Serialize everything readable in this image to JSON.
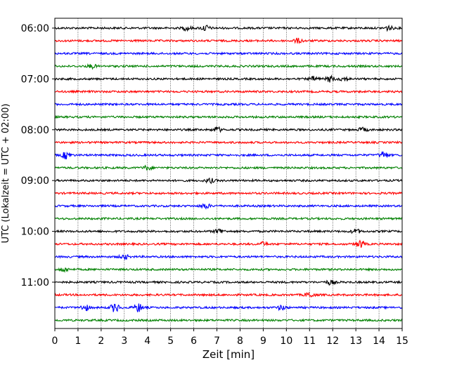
{
  "chart_data": {
    "type": "line",
    "title": "",
    "xlabel": "Zeit  [min]",
    "ylabel": "UTC (Lokalzeit = UTC + 02:00)",
    "xlim": [
      0,
      15
    ],
    "xticks": [
      0,
      1,
      2,
      3,
      4,
      5,
      6,
      7,
      8,
      9,
      10,
      11,
      12,
      13,
      14,
      15
    ],
    "grid_x": true,
    "grid_style": "dotted",
    "line_interval_minutes": 15,
    "start_time": "06:00",
    "y_tick_labels": [
      "06:00",
      "07:00",
      "08:00",
      "09:00",
      "10:00",
      "11:00"
    ],
    "y_tick_rows": [
      0,
      4,
      8,
      12,
      16,
      20
    ],
    "row_count": 24,
    "color_cycle": [
      "#000000",
      "#ff0000",
      "#0000ff",
      "#008000"
    ],
    "bursts": [
      {
        "row": 0,
        "x": 5.7,
        "amp": 3
      },
      {
        "row": 0,
        "x": 6.5,
        "amp": 4
      },
      {
        "row": 0,
        "x": 14.4,
        "amp": 3
      },
      {
        "row": 1,
        "x": 10.5,
        "amp": 3
      },
      {
        "row": 3,
        "x": 1.6,
        "amp": 2.5
      },
      {
        "row": 4,
        "x": 11.2,
        "amp": 3
      },
      {
        "row": 4,
        "x": 11.9,
        "amp": 4
      },
      {
        "row": 4,
        "x": 12.5,
        "amp": 3
      },
      {
        "row": 8,
        "x": 7.0,
        "amp": 3.5
      },
      {
        "row": 8,
        "x": 13.3,
        "amp": 2.5
      },
      {
        "row": 10,
        "x": 0.5,
        "amp": 5
      },
      {
        "row": 10,
        "x": 14.2,
        "amp": 5
      },
      {
        "row": 11,
        "x": 4.0,
        "amp": 3
      },
      {
        "row": 12,
        "x": 6.7,
        "amp": 3
      },
      {
        "row": 14,
        "x": 6.5,
        "amp": 3.5
      },
      {
        "row": 16,
        "x": 7.1,
        "amp": 3.5
      },
      {
        "row": 16,
        "x": 13.0,
        "amp": 3
      },
      {
        "row": 17,
        "x": 13.2,
        "amp": 5
      },
      {
        "row": 17,
        "x": 9.0,
        "amp": 2.5
      },
      {
        "row": 18,
        "x": 3.0,
        "amp": 3
      },
      {
        "row": 19,
        "x": 0.4,
        "amp": 3
      },
      {
        "row": 20,
        "x": 11.9,
        "amp": 3
      },
      {
        "row": 21,
        "x": 11.0,
        "amp": 3.5
      },
      {
        "row": 22,
        "x": 1.3,
        "amp": 4
      },
      {
        "row": 22,
        "x": 2.6,
        "amp": 6
      },
      {
        "row": 22,
        "x": 3.6,
        "amp": 6
      },
      {
        "row": 22,
        "x": 9.8,
        "amp": 3
      }
    ]
  }
}
